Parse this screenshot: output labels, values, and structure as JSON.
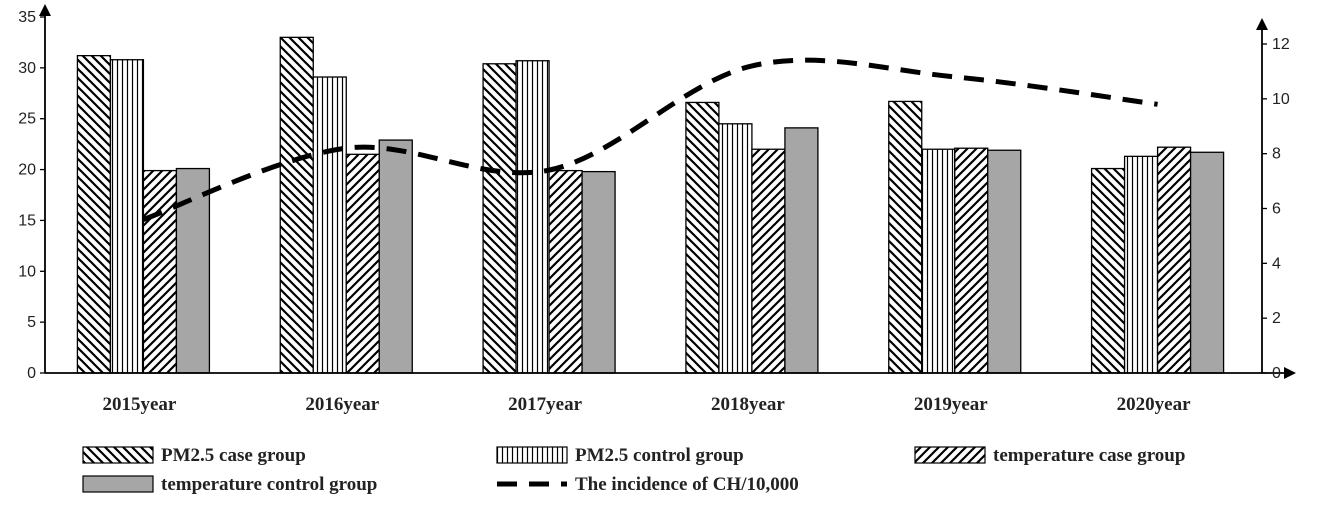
{
  "chart_data": {
    "type": "bar",
    "categories": [
      "2015year",
      "2016year",
      "2017year",
      "2018year",
      "2019year",
      "2020year"
    ],
    "series": [
      {
        "name": "PM2.5 case group",
        "kind": "bar",
        "axis": "left",
        "pattern": "back-diagonal-hatch",
        "values": [
          31.2,
          33.0,
          30.4,
          26.6,
          26.7,
          20.1
        ]
      },
      {
        "name": "PM2.5 control group",
        "kind": "bar",
        "axis": "left",
        "pattern": "vertical-hatch",
        "values": [
          30.8,
          29.1,
          30.7,
          24.5,
          22.0,
          21.3
        ]
      },
      {
        "name": "temperature case group",
        "kind": "bar",
        "axis": "left",
        "pattern": "forward-diagonal-hatch",
        "values": [
          19.9,
          21.5,
          19.9,
          22.0,
          22.1,
          22.2
        ]
      },
      {
        "name": "temperature control group",
        "kind": "bar",
        "axis": "left",
        "pattern": "solid-gray",
        "color": "#a6a6a6",
        "values": [
          20.1,
          22.9,
          19.8,
          24.1,
          21.9,
          21.7
        ]
      },
      {
        "name": "The incidence of CH/10,000",
        "kind": "line",
        "axis": "right",
        "style": "dashed",
        "color": "#000000",
        "values": [
          5.6,
          8.2,
          7.4,
          11.2,
          10.8,
          9.8
        ]
      }
    ],
    "y_left": {
      "min": 0,
      "max": 35,
      "ticks": [
        0,
        5,
        10,
        15,
        20,
        25,
        30,
        35
      ]
    },
    "y_right": {
      "min": 0,
      "max": 12,
      "ticks": [
        0,
        2,
        4,
        6,
        8,
        10,
        12
      ]
    },
    "grid": false,
    "legend_position": "bottom"
  }
}
